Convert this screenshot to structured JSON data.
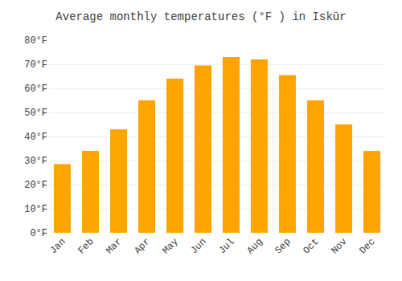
{
  "chart_data": {
    "type": "bar",
    "title": "Average monthly temperatures (°F ) in Iskūr",
    "categories": [
      "Jan",
      "Feb",
      "Mar",
      "Apr",
      "May",
      "Jun",
      "Jul",
      "Aug",
      "Sep",
      "Oct",
      "Nov",
      "Dec"
    ],
    "values": [
      28.5,
      34.0,
      43.0,
      55.0,
      64.0,
      69.5,
      73.0,
      72.0,
      65.5,
      55.0,
      45.0,
      34.0
    ],
    "color": "#FFA500",
    "ylim": [
      0,
      80
    ],
    "yticks": [
      {
        "value": 0,
        "label": "0°F"
      },
      {
        "value": 10,
        "label": "10°F"
      },
      {
        "value": 20,
        "label": "20°F"
      },
      {
        "value": 30,
        "label": "30°F"
      },
      {
        "value": 40,
        "label": "40°F"
      },
      {
        "value": 50,
        "label": "50°F"
      },
      {
        "value": 60,
        "label": "60°F"
      },
      {
        "value": 70,
        "label": "70°F"
      },
      {
        "value": 80,
        "label": "80°F"
      }
    ],
    "grid": true
  }
}
